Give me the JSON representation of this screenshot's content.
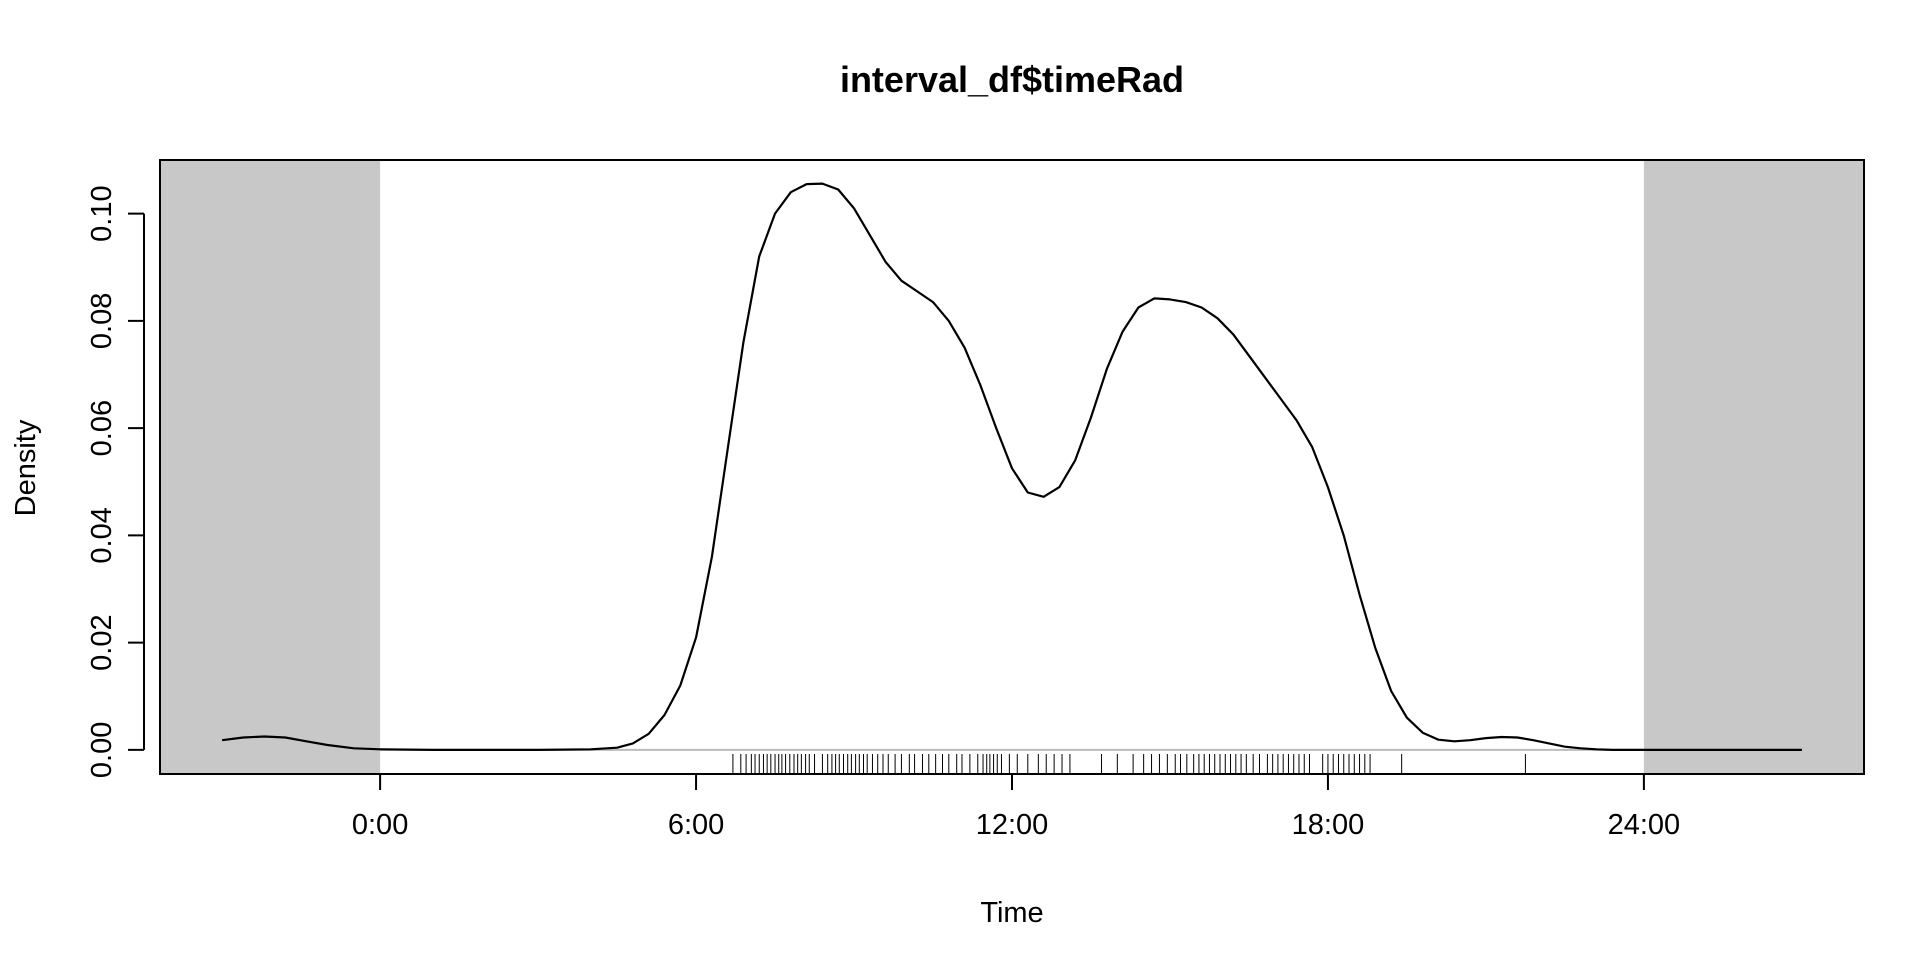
{
  "chart_data": {
    "type": "area",
    "title": "interval_df$timeRad",
    "xlabel": "Time",
    "ylabel": "Density",
    "xlim": [
      -4.18,
      28.18
    ],
    "ylim": [
      -0.0045,
      0.11
    ],
    "x_ticks": [
      {
        "value": 0,
        "label": "0:00"
      },
      {
        "value": 6,
        "label": "6:00"
      },
      {
        "value": 12,
        "label": "12:00"
      },
      {
        "value": 18,
        "label": "18:00"
      },
      {
        "value": 24,
        "label": "24:00"
      }
    ],
    "y_ticks": [
      {
        "value": 0.0,
        "label": "0.00"
      },
      {
        "value": 0.02,
        "label": "0.02"
      },
      {
        "value": 0.04,
        "label": "0.04"
      },
      {
        "value": 0.06,
        "label": "0.06"
      },
      {
        "value": 0.08,
        "label": "0.08"
      },
      {
        "value": 0.1,
        "label": "0.10"
      }
    ],
    "shaded_regions": [
      {
        "from": -4.18,
        "to": 0,
        "color": "#c8c8c8"
      },
      {
        "from": 24,
        "to": 28.18,
        "color": "#c8c8c8"
      }
    ],
    "baseline": {
      "value": 0,
      "from": 0,
      "to": 24,
      "color": "#bbbbbb"
    },
    "series": [
      {
        "line_color": "#000000",
        "x": [
          -3.0,
          -2.6,
          -2.2,
          -1.8,
          -1.4,
          -1.0,
          -0.5,
          0.0,
          1.0,
          2.0,
          3.0,
          4.0,
          4.5,
          4.8,
          5.1,
          5.4,
          5.7,
          6.0,
          6.3,
          6.6,
          6.9,
          7.2,
          7.5,
          7.8,
          8.1,
          8.4,
          8.7,
          9.0,
          9.3,
          9.6,
          9.9,
          10.2,
          10.5,
          10.8,
          11.1,
          11.4,
          11.7,
          12.0,
          12.3,
          12.6,
          12.9,
          13.2,
          13.5,
          13.8,
          14.1,
          14.4,
          14.7,
          15.0,
          15.3,
          15.6,
          15.9,
          16.2,
          16.5,
          16.8,
          17.1,
          17.4,
          17.7,
          18.0,
          18.3,
          18.6,
          18.9,
          19.2,
          19.5,
          19.8,
          20.1,
          20.4,
          20.7,
          21.0,
          21.3,
          21.6,
          21.9,
          22.2,
          22.5,
          22.8,
          23.1,
          23.4,
          23.7,
          24.0,
          25.0,
          26.0,
          27.0
        ],
        "y": [
          0.0018,
          0.0023,
          0.0025,
          0.0023,
          0.0016,
          0.0009,
          0.0003,
          0.0001,
          0.0,
          0.0,
          0.0,
          0.0001,
          0.0004,
          0.0012,
          0.003,
          0.0065,
          0.012,
          0.021,
          0.036,
          0.056,
          0.076,
          0.092,
          0.1,
          0.104,
          0.1055,
          0.1056,
          0.1045,
          0.101,
          0.096,
          0.091,
          0.0875,
          0.0855,
          0.0835,
          0.08,
          0.075,
          0.068,
          0.06,
          0.0525,
          0.048,
          0.0472,
          0.049,
          0.054,
          0.062,
          0.071,
          0.078,
          0.0825,
          0.0842,
          0.084,
          0.0835,
          0.0825,
          0.0805,
          0.0775,
          0.0735,
          0.0695,
          0.0655,
          0.0615,
          0.0565,
          0.049,
          0.04,
          0.029,
          0.019,
          0.011,
          0.006,
          0.0032,
          0.0019,
          0.0016,
          0.0018,
          0.0022,
          0.0024,
          0.0023,
          0.0018,
          0.0012,
          0.0006,
          0.0003,
          0.0001,
          0.0,
          0.0,
          0.0,
          0.0,
          0.0,
          0.0
        ]
      }
    ],
    "rug": {
      "color": "#000000",
      "x": [
        6.7,
        6.85,
        6.95,
        7.05,
        7.12,
        7.2,
        7.28,
        7.35,
        7.42,
        7.5,
        7.57,
        7.63,
        7.7,
        7.78,
        7.86,
        7.93,
        8.0,
        8.08,
        8.15,
        8.25,
        8.4,
        8.5,
        8.58,
        8.65,
        8.72,
        8.8,
        8.88,
        8.95,
        9.03,
        9.1,
        9.18,
        9.25,
        9.35,
        9.45,
        9.55,
        9.65,
        9.78,
        9.9,
        10.05,
        10.15,
        10.3,
        10.42,
        10.55,
        10.68,
        10.8,
        10.95,
        11.05,
        11.2,
        11.35,
        11.45,
        11.52,
        11.58,
        11.65,
        11.72,
        11.8,
        11.95,
        12.1,
        12.3,
        12.5,
        12.65,
        12.8,
        12.95,
        13.1,
        13.7,
        14.0,
        14.3,
        14.5,
        14.65,
        14.8,
        14.95,
        15.1,
        15.2,
        15.32,
        15.45,
        15.55,
        15.65,
        15.75,
        15.85,
        15.95,
        16.05,
        16.15,
        16.25,
        16.35,
        16.45,
        16.58,
        16.7,
        16.85,
        16.95,
        17.05,
        17.15,
        17.25,
        17.35,
        17.45,
        17.55,
        17.65,
        17.9,
        18.0,
        18.1,
        18.2,
        18.3,
        18.4,
        18.5,
        18.6,
        18.7,
        18.8,
        19.4,
        21.75
      ]
    }
  }
}
